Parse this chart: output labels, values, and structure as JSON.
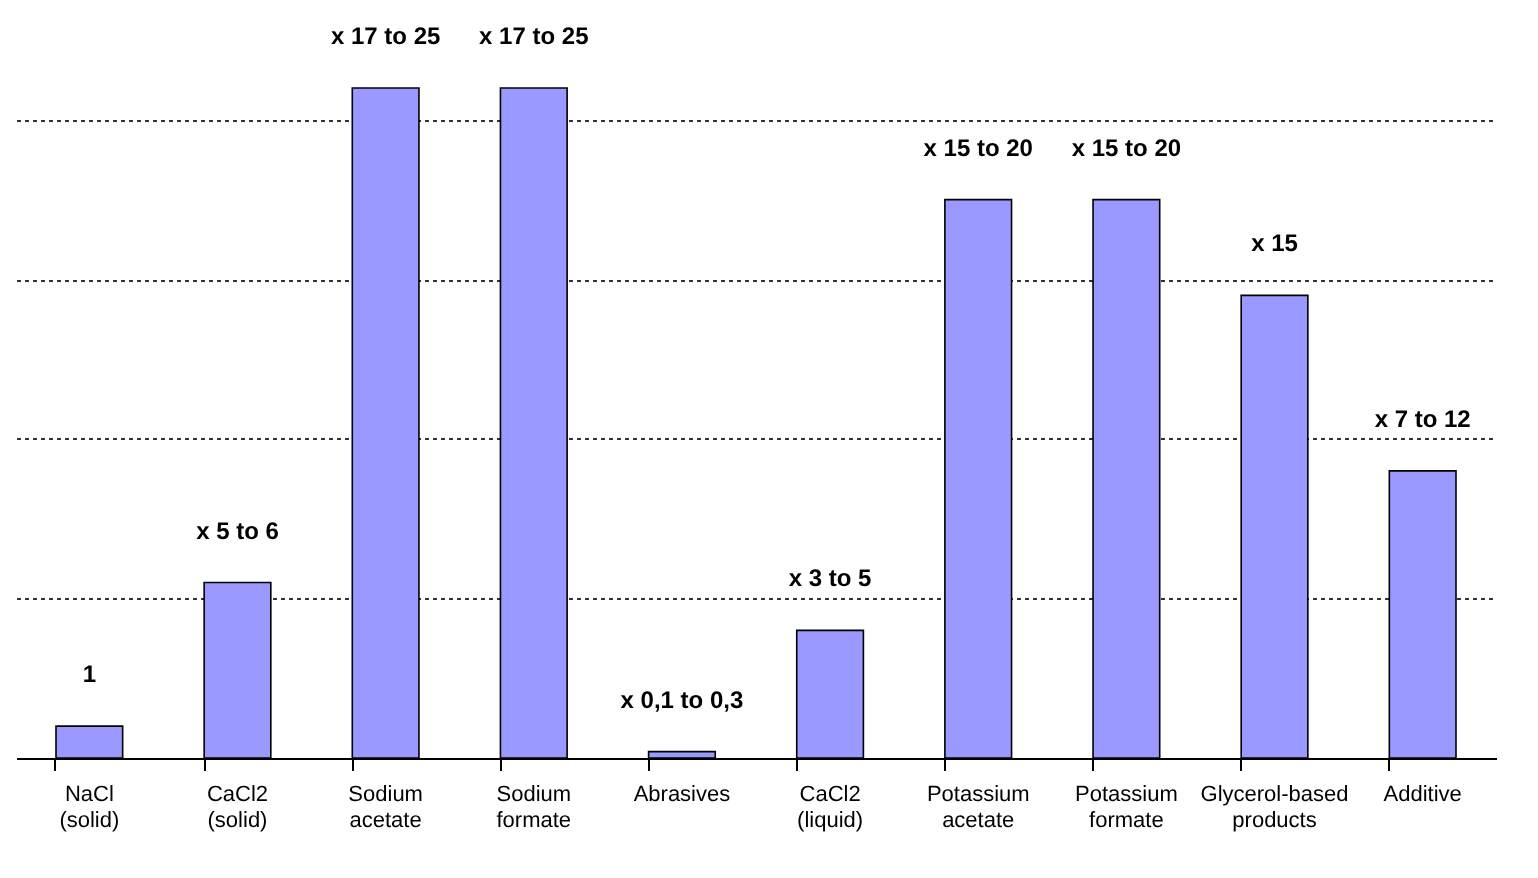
{
  "chart_data": {
    "type": "bar",
    "yticks": [
      0,
      5,
      10,
      15,
      20
    ],
    "tick_labels": "x",
    "categories": [
      "NaCl (solid)",
      "CaCl2 (solid)",
      "Sodium acetate",
      "Sodium formate",
      "Abrasives",
      "CaCl2 (liquid)",
      "Potassium acetate",
      "Potassium formate",
      "Glycerol-based products",
      "Additive"
    ],
    "values": [
      1,
      5.5,
      21,
      21,
      0.2,
      4,
      17.5,
      17.5,
      14.5,
      9
    ],
    "value_labels": [
      "1",
      "x 5 to 6",
      "x 17 to 25",
      "x 17 to 25",
      "x 0,1 to 0,3",
      "x 3 to 5",
      "x 15 to 20",
      "x 15 to 20",
      "x 15",
      "x 7 to 12"
    ],
    "color": "#9999ff",
    "grid": "y"
  }
}
